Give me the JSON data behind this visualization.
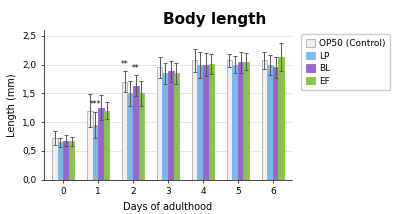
{
  "title": "Body length",
  "xlabel": "Days of adulthood",
  "ylabel": "Length (mm)",
  "days": [
    0,
    1,
    2,
    3,
    4,
    5,
    6
  ],
  "bar_values": {
    "OP50": [
      0.73,
      1.2,
      1.7,
      1.95,
      2.07,
      2.07,
      2.07
    ],
    "LP": [
      0.65,
      0.95,
      1.5,
      1.85,
      1.99,
      2.0,
      1.99
    ],
    "BL": [
      0.68,
      1.25,
      1.63,
      1.88,
      2.0,
      2.04,
      1.95
    ],
    "EF": [
      0.67,
      1.2,
      1.5,
      1.85,
      2.01,
      2.05,
      2.13
    ]
  },
  "bar_errors": {
    "OP50": [
      0.12,
      0.28,
      0.18,
      0.18,
      0.2,
      0.12,
      0.15
    ],
    "LP": [
      0.08,
      0.22,
      0.22,
      0.18,
      0.22,
      0.15,
      0.18
    ],
    "BL": [
      0.1,
      0.22,
      0.18,
      0.18,
      0.2,
      0.18,
      0.18
    ],
    "EF": [
      0.08,
      0.15,
      0.22,
      0.18,
      0.18,
      0.15,
      0.25
    ]
  },
  "colors": {
    "OP50": "#f0f0f0",
    "LP": "#7ab8e8",
    "BL": "#9966cc",
    "EF": "#88c44a"
  },
  "edge_colors": {
    "OP50": "#aaaaaa",
    "LP": "#7ab8e8",
    "BL": "#9966cc",
    "EF": "#88c44a"
  },
  "ylim": [
    0.0,
    2.6
  ],
  "yticks": [
    0.0,
    0.5,
    1.0,
    1.5,
    2.0,
    2.5
  ],
  "ytick_labels": [
    "0,0",
    "0,5",
    "1,0",
    "1,5",
    "2,0",
    "2,5"
  ],
  "legend_labels": [
    "OP50 (Control)",
    "LP",
    "BL",
    "EF"
  ],
  "bar_width": 0.16,
  "title_fontsize": 11,
  "axis_fontsize": 7,
  "tick_fontsize": 6.5,
  "legend_fontsize": 6.5,
  "background_color": "#ffffff",
  "grid_color": "#dddddd"
}
